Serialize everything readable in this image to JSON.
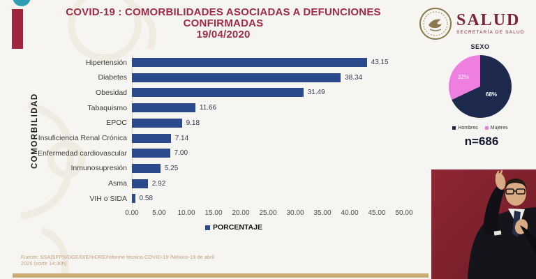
{
  "slide": {
    "title_line1": "COVID-19 : COMORBILIDADES ASOCIADAS A DEFUNCIONES",
    "title_line2": "CONFIRMADAS",
    "title_line3": "19/04/2020"
  },
  "logo": {
    "name": "SALUD",
    "subtitle": "SECRETARÍA DE SALUD"
  },
  "chart_data": [
    {
      "type": "bar",
      "orientation": "horizontal",
      "title": "",
      "categories": [
        "Hipertensión",
        "Diabetes",
        "Obesidad",
        "Tabaquismo",
        "EPOC",
        "Insuficiencia Renal Crónica",
        "Enfermedad cardiovascular",
        "Inmunosupresión",
        "Asma",
        "VIH o SIDA"
      ],
      "values": [
        43.15,
        38.34,
        31.49,
        11.66,
        9.18,
        7.14,
        7.0,
        5.25,
        2.92,
        0.58
      ],
      "value_labels": [
        "43.15",
        "38.34",
        "31.49",
        "11.66",
        "9.18",
        "7.14",
        "7.00",
        "5.25",
        "2.92",
        "0.58"
      ],
      "xlabel": "PORCENTAJE",
      "ylabel": "COMORBILIDAD",
      "xlim": [
        0,
        50
      ],
      "xticks": [
        0,
        5,
        10,
        15,
        20,
        25,
        30,
        35,
        40,
        45,
        50
      ],
      "xtick_labels": [
        "0.00",
        "5.00",
        "10.00",
        "15.00",
        "20.00",
        "25.00",
        "30.00",
        "35.00",
        "40.00",
        "45.00",
        "50.00"
      ],
      "grid": false,
      "legend": {
        "label": "PORCENTAJE",
        "position": "bottom"
      },
      "bar_color": "#2a4a8c"
    },
    {
      "type": "pie",
      "title": "SEXO",
      "labels": [
        "Hombres",
        "Mujeres"
      ],
      "values": [
        68,
        32
      ],
      "slice_labels": [
        "68%",
        "32%"
      ],
      "colors": [
        "#1e2a4d",
        "#ee7fe0"
      ],
      "legend_position": "bottom",
      "annotation": "n=686"
    }
  ],
  "footer": {
    "line1": "Fuente: SSA|SPPS/DGE/DIE/InDRE/Informe técnico.COVID-19 /México-19 de abril",
    "line2": "2020 (corte 14:30h)"
  },
  "colors": {
    "title": "#9e2b48",
    "accent_bar": "#a0253f",
    "accent_circle": "#2f9eb5",
    "bottom_divider": "#c9ab76",
    "video_background": "#872331"
  }
}
